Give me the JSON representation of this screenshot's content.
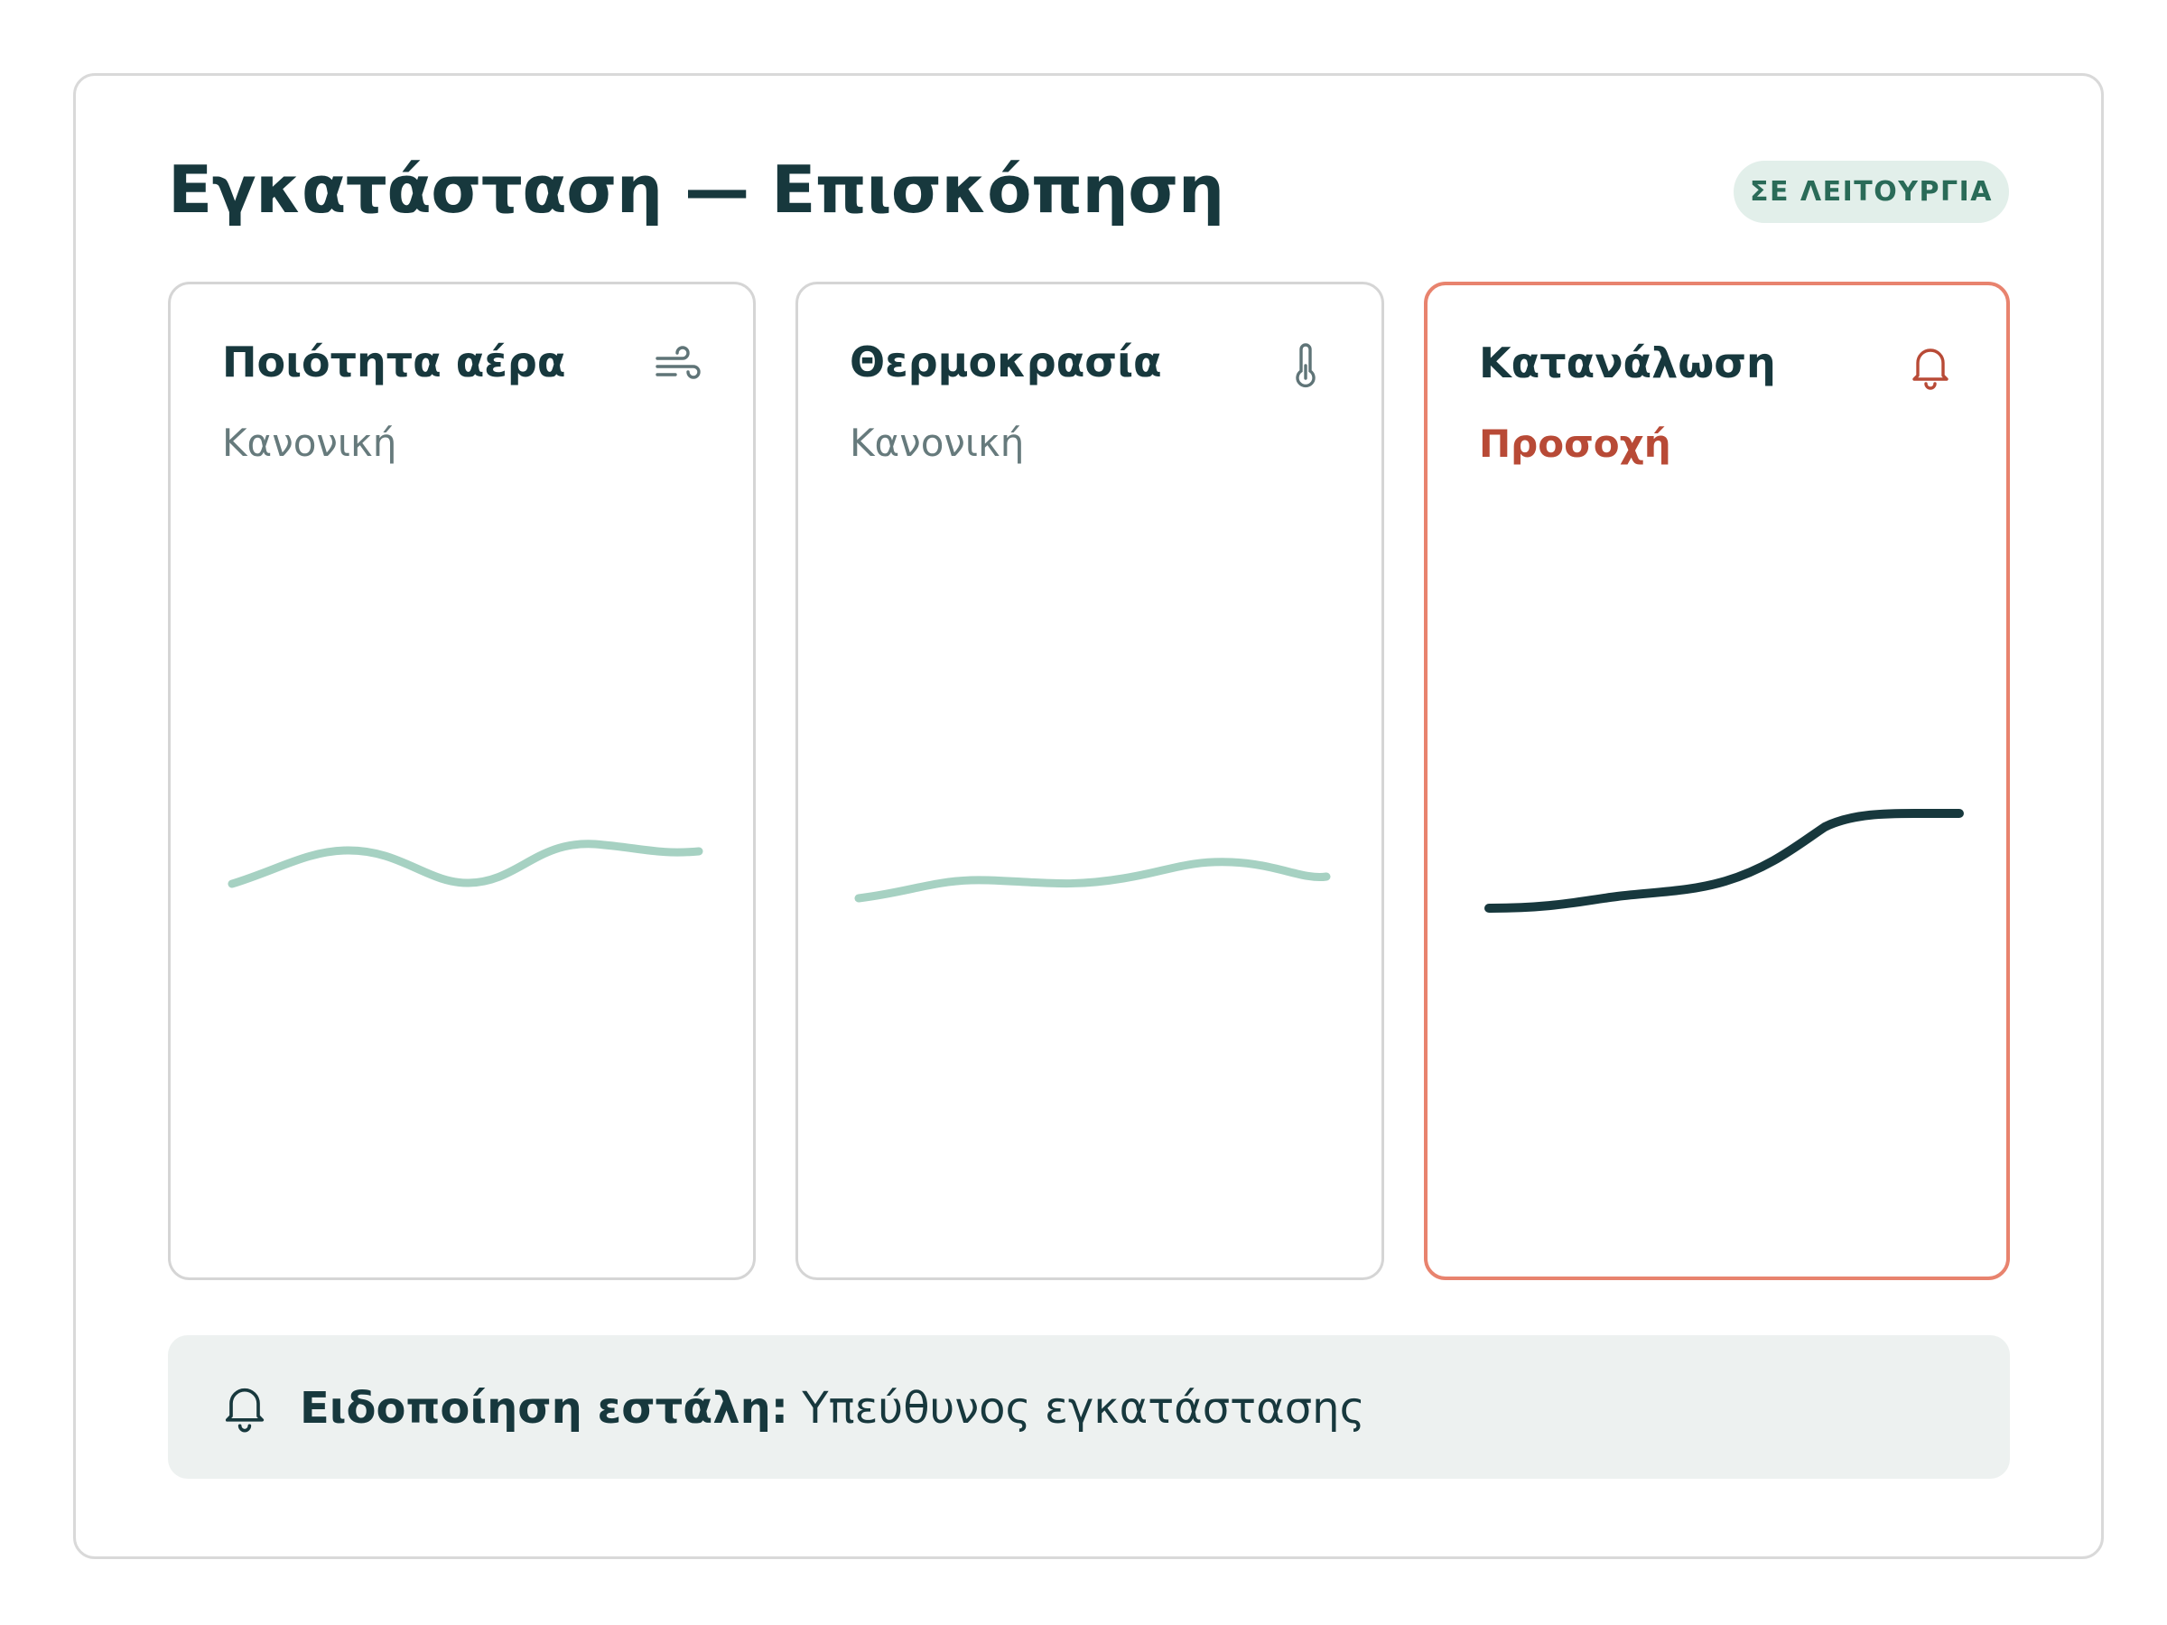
{
  "header": {
    "title": "Εγκατάσταση — Επισκόπηση",
    "status_badge": "ΣΕ ΛΕΙΤΟΥΡΓΙΑ"
  },
  "cards": [
    {
      "title": "Ποιότητα αέρα",
      "status": "Κανονική",
      "icon": "wind-icon",
      "state": "normal"
    },
    {
      "title": "Θερμοκρασία",
      "status": "Κανονική",
      "icon": "thermometer-icon",
      "state": "normal"
    },
    {
      "title": "Κατανάλωση",
      "status": "Προσοχή",
      "icon": "bell-icon",
      "state": "warning"
    }
  ],
  "notification": {
    "icon": "bell-icon",
    "label": "Ειδοποίηση εστάλη:",
    "recipient": "Υπεύθυνος εγκατάστασης"
  },
  "colors": {
    "title_text": "#17383d",
    "normal_line": "#a6d1c2",
    "warning_line": "#17383d",
    "warning_border": "#e8836e",
    "warning_text": "#b84a36",
    "badge_bg": "#e2efea",
    "badge_text": "#2a6b58",
    "notice_bg": "#edf1f0"
  }
}
